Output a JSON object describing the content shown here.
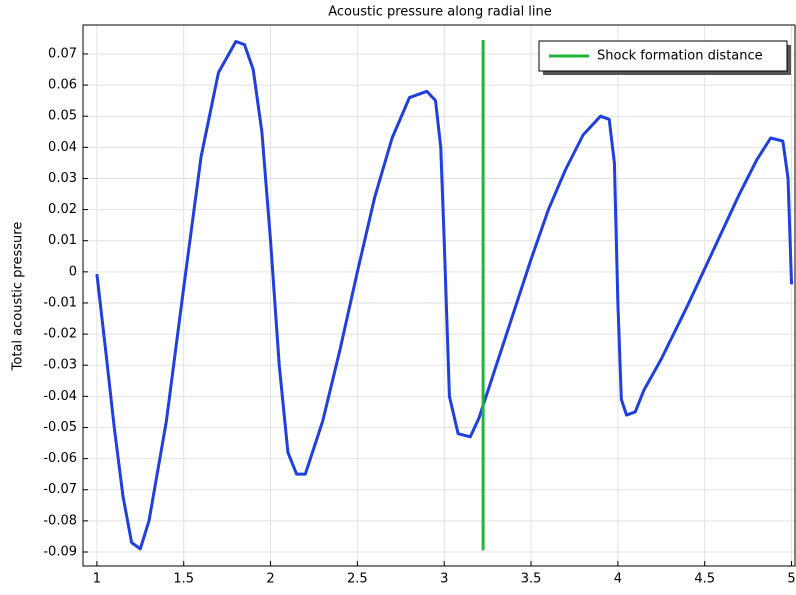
{
  "chart_data": {
    "type": "line",
    "title": "Acoustic pressure along radial line",
    "ylabel": "Total acoustic pressure",
    "xlim": [
      0.92,
      5.02
    ],
    "ylim": [
      -0.0945,
      0.0793
    ],
    "xticks": [
      1,
      1.5,
      2,
      2.5,
      3,
      3.5,
      4,
      4.5,
      5
    ],
    "yticks": [
      -0.09,
      -0.08,
      -0.07,
      -0.06,
      -0.05,
      -0.04,
      -0.03,
      -0.02,
      -0.01,
      0,
      0.01,
      0.02,
      0.03,
      0.04,
      0.05,
      0.06,
      0.07
    ],
    "grid": true,
    "legend": "upper right",
    "series": [
      {
        "color": "#1f3fe0",
        "x": [
          1.0,
          1.05,
          1.1,
          1.15,
          1.2,
          1.25,
          1.3,
          1.4,
          1.5,
          1.6,
          1.7,
          1.8,
          1.85,
          1.9,
          1.95,
          2.0,
          2.05,
          2.1,
          2.15,
          2.2,
          2.3,
          2.4,
          2.5,
          2.6,
          2.7,
          2.8,
          2.9,
          2.95,
          2.98,
          3.0,
          3.03,
          3.08,
          3.15,
          3.2,
          3.3,
          3.4,
          3.5,
          3.6,
          3.7,
          3.8,
          3.9,
          3.95,
          3.98,
          4.0,
          4.02,
          4.05,
          4.1,
          4.15,
          4.25,
          4.4,
          4.5,
          4.6,
          4.7,
          4.8,
          4.88,
          4.95,
          4.98,
          5.0
        ],
        "values": [
          -0.0007,
          -0.025,
          -0.05,
          -0.072,
          -0.087,
          -0.089,
          -0.08,
          -0.048,
          -0.005,
          0.037,
          0.064,
          0.074,
          0.073,
          0.065,
          0.045,
          0.01,
          -0.03,
          -0.058,
          -0.065,
          -0.065,
          -0.048,
          -0.025,
          0.0,
          0.024,
          0.043,
          0.056,
          0.058,
          0.055,
          0.04,
          0.01,
          -0.04,
          -0.052,
          -0.053,
          -0.047,
          -0.03,
          -0.013,
          0.004,
          0.02,
          0.033,
          0.044,
          0.05,
          0.049,
          0.035,
          -0.01,
          -0.041,
          -0.046,
          -0.045,
          -0.038,
          -0.028,
          -0.011,
          0.001,
          0.013,
          0.025,
          0.036,
          0.043,
          0.042,
          0.03,
          -0.004
        ]
      },
      {
        "name": "Shock formation distance",
        "color": "#22b43a",
        "x": [
          3.224,
          3.224
        ],
        "values": [
          0.0745,
          -0.0895
        ]
      }
    ]
  }
}
